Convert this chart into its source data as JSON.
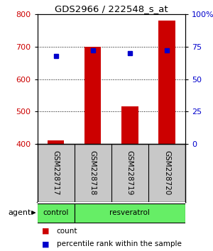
{
  "title": "GDS2966 / 222548_s_at",
  "samples": [
    "GSM228717",
    "GSM228718",
    "GSM228719",
    "GSM228720"
  ],
  "count_values": [
    410,
    700,
    515,
    780
  ],
  "count_baseline": 400,
  "percentile_values": [
    68,
    72,
    70,
    72
  ],
  "ylim_left": [
    400,
    800
  ],
  "ylim_right": [
    0,
    100
  ],
  "yticks_left": [
    400,
    500,
    600,
    700,
    800
  ],
  "yticks_right": [
    0,
    25,
    50,
    75,
    100
  ],
  "ytick_labels_right": [
    "0",
    "25",
    "50",
    "75",
    "100%"
  ],
  "bar_color": "#cc0000",
  "dot_color": "#0000cc",
  "left_axis_color": "#cc0000",
  "right_axis_color": "#0000cc",
  "plot_bg_color": "#ffffff",
  "sample_box_color": "#c8c8c8",
  "group_color": "#66ee66",
  "group_defs": [
    {
      "start": 0,
      "end": 0,
      "label": "control"
    },
    {
      "start": 1,
      "end": 3,
      "label": "resveratrol"
    }
  ],
  "group_row_label": "agent",
  "legend_items": [
    {
      "color": "#cc0000",
      "label": "count"
    },
    {
      "color": "#0000cc",
      "label": "percentile rank within the sample"
    }
  ]
}
